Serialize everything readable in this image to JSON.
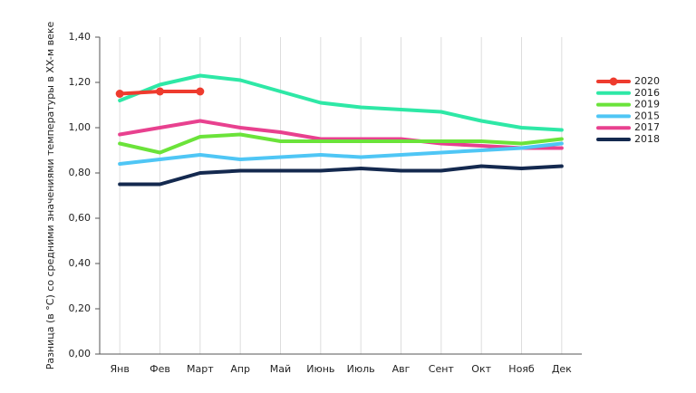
{
  "chart_data": {
    "type": "line",
    "y_label": "Разница (в °С) со средними значениями температуры в XX-м веке",
    "categories": [
      "Янв",
      "Фев",
      "Март",
      "Апр",
      "Май",
      "Июнь",
      "Июль",
      "Авг",
      "Сент",
      "Окт",
      "Нояб",
      "Дек"
    ],
    "series": [
      {
        "name": "2020",
        "color": "#ee3b2e",
        "marker": "circle",
        "values": [
          1.15,
          1.16,
          1.16,
          null,
          null,
          null,
          null,
          null,
          null,
          null,
          null,
          null
        ]
      },
      {
        "name": "2016",
        "color": "#2ee8a6",
        "values": [
          1.12,
          1.19,
          1.23,
          1.21,
          1.16,
          1.11,
          1.09,
          1.08,
          1.07,
          1.03,
          1.0,
          0.99
        ]
      },
      {
        "name": "2019",
        "color": "#6be33a",
        "values": [
          0.93,
          0.89,
          0.96,
          0.97,
          0.94,
          0.94,
          0.94,
          0.94,
          0.94,
          0.94,
          0.93,
          0.95
        ]
      },
      {
        "name": "2015",
        "color": "#4fc6f5",
        "values": [
          0.84,
          0.86,
          0.88,
          0.86,
          0.87,
          0.88,
          0.87,
          0.88,
          0.89,
          0.9,
          0.91,
          0.93
        ]
      },
      {
        "name": "2017",
        "color": "#e8418f",
        "values": [
          0.97,
          1.0,
          1.03,
          1.0,
          0.98,
          0.95,
          0.95,
          0.95,
          0.93,
          0.92,
          0.91,
          0.91
        ]
      },
      {
        "name": "2018",
        "color": "#14294f",
        "values": [
          0.75,
          0.75,
          0.8,
          0.81,
          0.81,
          0.81,
          0.82,
          0.81,
          0.81,
          0.83,
          0.82,
          0.83
        ]
      }
    ],
    "ylim": [
      0,
      1.4
    ],
    "yticks": [
      {
        "value": 0,
        "label": "0,00"
      },
      {
        "value": 0.2,
        "label": "0,20"
      },
      {
        "value": 0.4,
        "label": "0,40"
      },
      {
        "value": 0.6,
        "label": "0,60"
      },
      {
        "value": 0.8,
        "label": "0,80"
      },
      {
        "value": 1.0,
        "label": "1,00"
      },
      {
        "value": 1.2,
        "label": "1,20"
      },
      {
        "value": 1.4,
        "label": "1,40"
      }
    ],
    "grid": true,
    "legend": "right"
  }
}
